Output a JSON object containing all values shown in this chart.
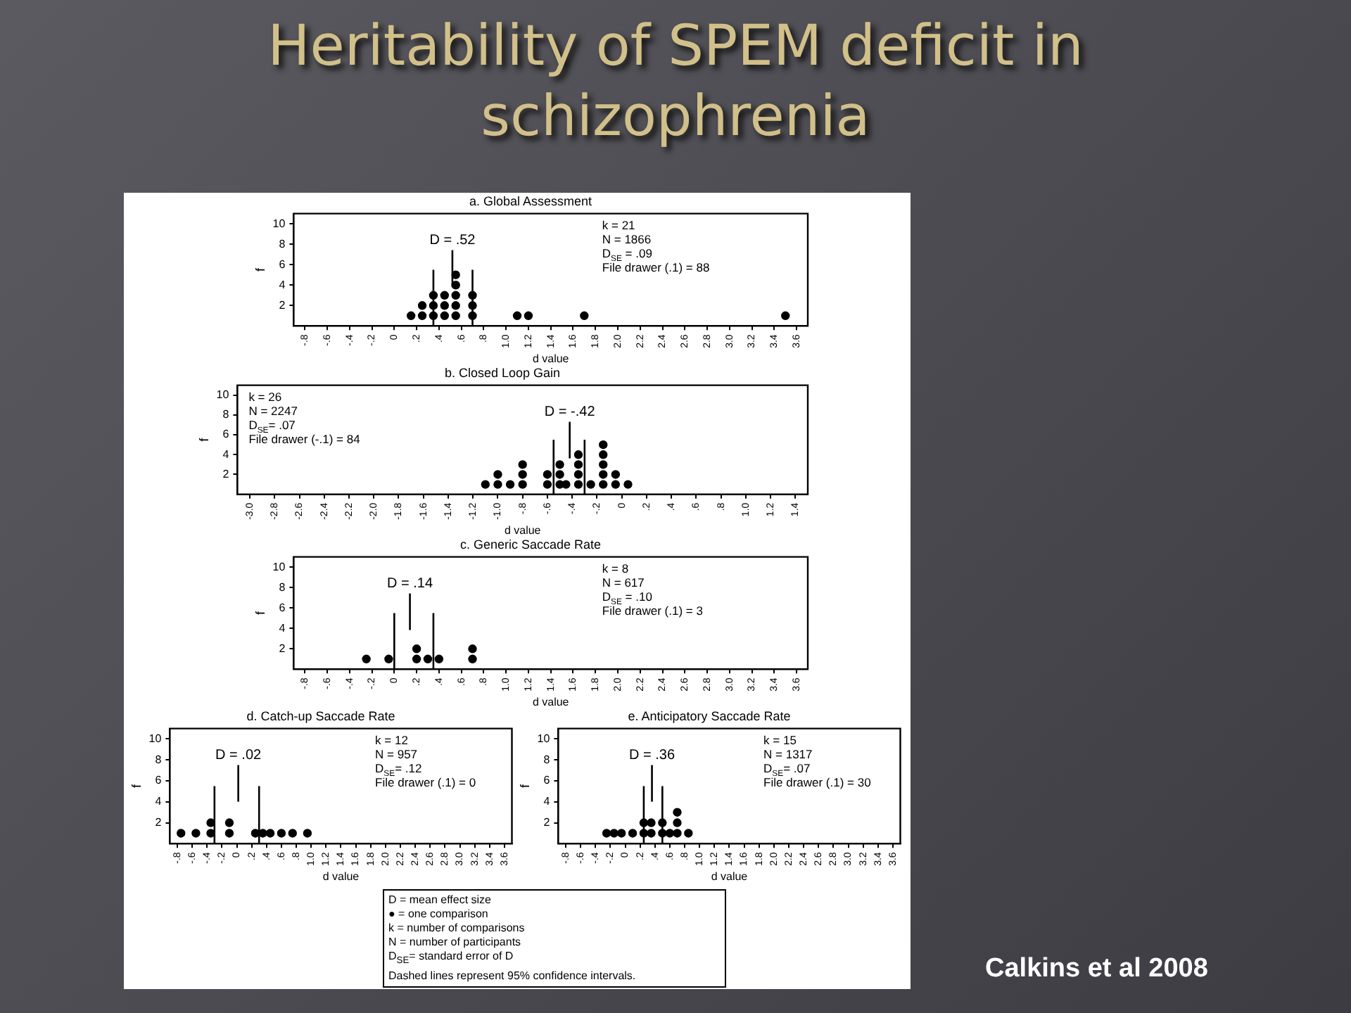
{
  "chart_data": [
    {
      "type": "other",
      "title": "Heritability of SPEM deficit in schizophrenia",
      "annotations": [
        "D = mean effect size",
        "● = one comparison",
        "k = number of comparisons",
        "N = number of participants",
        "D$_{SE}$= standard error of D",
        "Dashed lines represent 95% confidence intervals.",
        "Calkins et al 2008"
      ]
    },
    {
      "type": "scatter",
      "title": "a. Global Assessment",
      "xlabel": "d value",
      "ylabel": "f",
      "marker": "circle",
      "grid": false,
      "x": [
        0.15,
        0.25,
        0.25,
        0.35,
        0.35,
        0.35,
        0.45,
        0.45,
        0.45,
        0.55,
        0.55,
        0.55,
        0.55,
        0.55,
        0.7,
        0.7,
        0.7,
        1.1,
        1.2,
        1.7,
        3.5
      ],
      "series": [
        {
          "color": "#000000",
          "values": [
            1,
            1,
            2,
            1,
            2,
            3,
            1,
            2,
            3,
            1,
            2,
            3,
            4,
            5,
            1,
            2,
            3,
            1,
            1,
            1,
            1
          ]
        }
      ],
      "xlim": [
        -0.9,
        3.7
      ],
      "xticks": [
        {
          "value": -0.8,
          "label": "-.8"
        },
        {
          "value": -0.6,
          "label": "-.6"
        },
        {
          "value": -0.4,
          "label": "-.4"
        },
        {
          "value": -0.2,
          "label": "-.2"
        },
        0,
        {
          "value": 0.2,
          "label": ".2"
        },
        {
          "value": 0.4,
          "label": ".4"
        },
        {
          "value": 0.6,
          "label": ".6"
        },
        {
          "value": 0.8,
          "label": ".8"
        },
        {
          "value": 1,
          "label": "1.0"
        },
        1.2,
        1.4,
        1.6,
        1.8,
        {
          "value": 2,
          "label": "2.0"
        },
        2.2,
        2.4,
        2.6,
        2.8,
        {
          "value": 3,
          "label": "3.0"
        },
        3.2,
        3.4,
        3.6
      ],
      "ylim": [
        0,
        11
      ],
      "yticks": [
        2,
        4,
        6,
        8,
        10
      ],
      "ref_lines": [
        {
          "axis": "x",
          "value": 0.35
        },
        {
          "axis": "x",
          "value": 0.7
        },
        {
          "axis": "x",
          "value": 0.52,
          "label": "D = .52"
        }
      ],
      "annotations": [
        "k = 21",
        "N = 1866",
        "D$_{SE}$ = .09",
        "File drawer (.1) = 88"
      ]
    },
    {
      "type": "scatter",
      "title": "b. Closed Loop Gain",
      "xlabel": "d value",
      "ylabel": "f",
      "marker": "circle",
      "grid": false,
      "x": [
        -1.1,
        -1.0,
        -1.0,
        -0.9,
        -0.8,
        -0.8,
        -0.8,
        -0.6,
        -0.6,
        -0.5,
        -0.5,
        -0.5,
        -0.45,
        -0.35,
        -0.35,
        -0.35,
        -0.35,
        -0.25,
        -0.15,
        -0.15,
        -0.15,
        -0.15,
        -0.15,
        -0.05,
        -0.05,
        0.05
      ],
      "series": [
        {
          "color": "#000000",
          "values": [
            1,
            1,
            2,
            1,
            1,
            2,
            3,
            1,
            2,
            1,
            2,
            3,
            1,
            1,
            2,
            3,
            4,
            1,
            1,
            2,
            3,
            4,
            5,
            1,
            2,
            1
          ]
        }
      ],
      "xlim": [
        -3.1,
        1.5
      ],
      "xticks": [
        {
          "value": -3,
          "label": "-3.0"
        },
        -2.8,
        -2.6,
        -2.4,
        -2.2,
        {
          "value": -2,
          "label": "-2.0"
        },
        -1.8,
        -1.6,
        -1.4,
        -1.2,
        {
          "value": -1,
          "label": "-1.0"
        },
        {
          "value": -0.8,
          "label": "-.8"
        },
        {
          "value": -0.6,
          "label": "-.6"
        },
        {
          "value": -0.4,
          "label": "-.4"
        },
        {
          "value": -0.2,
          "label": "-.2"
        },
        0,
        {
          "value": 0.2,
          "label": ".2"
        },
        {
          "value": 0.4,
          "label": ".4"
        },
        {
          "value": 0.6,
          "label": ".6"
        },
        {
          "value": 0.8,
          "label": ".8"
        },
        {
          "value": 1,
          "label": "1.0"
        },
        1.2,
        1.4
      ],
      "ylim": [
        0,
        11
      ],
      "yticks": [
        2,
        4,
        6,
        8,
        10
      ],
      "ref_lines": [
        {
          "axis": "x",
          "value": -0.55
        },
        {
          "axis": "x",
          "value": -0.3
        },
        {
          "axis": "x",
          "value": -0.42,
          "label": "D = -.42"
        }
      ],
      "annotations": [
        "k = 26",
        "N = 2247",
        "D$_{SE}$= .07",
        "File drawer (-.1) = 84"
      ]
    },
    {
      "type": "scatter",
      "title": "c. Generic Saccade Rate",
      "xlabel": "d value",
      "ylabel": "f",
      "marker": "circle",
      "grid": false,
      "x": [
        -0.25,
        -0.05,
        0.2,
        0.2,
        0.3,
        0.4,
        0.7,
        0.7
      ],
      "series": [
        {
          "color": "#000000",
          "values": [
            1,
            1,
            1,
            2,
            1,
            1,
            1,
            2
          ]
        }
      ],
      "xlim": [
        -0.9,
        3.7
      ],
      "xticks": [
        {
          "value": -0.8,
          "label": "-.8"
        },
        {
          "value": -0.6,
          "label": "-.6"
        },
        {
          "value": -0.4,
          "label": "-.4"
        },
        {
          "value": -0.2,
          "label": "-.2"
        },
        0,
        {
          "value": 0.2,
          "label": ".2"
        },
        {
          "value": 0.4,
          "label": ".4"
        },
        {
          "value": 0.6,
          "label": ".6"
        },
        {
          "value": 0.8,
          "label": ".8"
        },
        {
          "value": 1,
          "label": "1.0"
        },
        1.2,
        1.4,
        1.6,
        1.8,
        {
          "value": 2,
          "label": "2.0"
        },
        2.2,
        2.4,
        2.6,
        2.8,
        {
          "value": 3,
          "label": "3.0"
        },
        3.2,
        3.4,
        3.6
      ],
      "ylim": [
        0,
        11
      ],
      "yticks": [
        2,
        4,
        6,
        8,
        10
      ],
      "ref_lines": [
        {
          "axis": "x",
          "value": 0
        },
        {
          "axis": "x",
          "value": 0.35
        },
        {
          "axis": "x",
          "value": 0.14,
          "label": "D = .14"
        }
      ],
      "annotations": [
        "k = 8",
        "N = 617",
        "D$_{SE}$ = .10",
        "File drawer (.1) = 3"
      ]
    },
    {
      "type": "scatter",
      "title": "d. Catch-up Saccade Rate",
      "xlabel": "d value",
      "ylabel": "f",
      "marker": "circle",
      "grid": false,
      "x": [
        -0.75,
        -0.55,
        -0.35,
        -0.35,
        -0.1,
        -0.1,
        0.25,
        0.35,
        0.45,
        0.6,
        0.75,
        0.95
      ],
      "series": [
        {
          "color": "#000000",
          "values": [
            1,
            1,
            1,
            2,
            1,
            2,
            1,
            1,
            1,
            1,
            1,
            1
          ]
        }
      ],
      "xlim": [
        -0.9,
        3.7
      ],
      "xticks": [
        {
          "value": -0.8,
          "label": "-.8"
        },
        {
          "value": -0.6,
          "label": "-.6"
        },
        {
          "value": -0.4,
          "label": "-.4"
        },
        {
          "value": -0.2,
          "label": "-.2"
        },
        0,
        {
          "value": 0.2,
          "label": ".2"
        },
        {
          "value": 0.4,
          "label": ".4"
        },
        {
          "value": 0.6,
          "label": ".6"
        },
        {
          "value": 0.8,
          "label": ".8"
        },
        {
          "value": 1,
          "label": "1.0"
        },
        1.2,
        1.4,
        1.6,
        1.8,
        {
          "value": 2,
          "label": "2.0"
        },
        2.2,
        2.4,
        2.6,
        2.8,
        {
          "value": 3,
          "label": "3.0"
        },
        3.2,
        3.4,
        3.6
      ],
      "ylim": [
        0,
        11
      ],
      "yticks": [
        2,
        4,
        6,
        8,
        10
      ],
      "ref_lines": [
        {
          "axis": "x",
          "value": -0.3
        },
        {
          "axis": "x",
          "value": 0.3
        },
        {
          "axis": "x",
          "value": 0.02,
          "label": "D = .02"
        }
      ],
      "annotations": [
        "k = 12",
        "N = 957",
        "D$_{SE}$= .12",
        "File drawer (.1) = 0"
      ]
    },
    {
      "type": "scatter",
      "title": "e. Anticipatory Saccade Rate",
      "xlabel": "d value",
      "ylabel": "f",
      "marker": "circle",
      "grid": false,
      "x": [
        -0.25,
        -0.15,
        -0.05,
        0.1,
        0.25,
        0.25,
        0.35,
        0.35,
        0.5,
        0.5,
        0.6,
        0.7,
        0.7,
        0.7,
        0.85
      ],
      "series": [
        {
          "color": "#000000",
          "values": [
            1,
            1,
            1,
            1,
            1,
            2,
            1,
            2,
            1,
            2,
            1,
            1,
            2,
            3,
            1
          ]
        }
      ],
      "xlim": [
        -0.9,
        3.7
      ],
      "xticks": [
        {
          "value": -0.8,
          "label": "-.8"
        },
        {
          "value": -0.6,
          "label": "-.6"
        },
        {
          "value": -0.4,
          "label": "-.4"
        },
        {
          "value": -0.2,
          "label": "-.2"
        },
        0,
        {
          "value": 0.2,
          "label": ".2"
        },
        {
          "value": 0.4,
          "label": ".4"
        },
        {
          "value": 0.6,
          "label": ".6"
        },
        {
          "value": 0.8,
          "label": ".8"
        },
        {
          "value": 1,
          "label": "1.0"
        },
        1.2,
        1.4,
        1.6,
        1.8,
        {
          "value": 2,
          "label": "2.0"
        },
        2.2,
        2.4,
        2.6,
        2.8,
        {
          "value": 3,
          "label": "3.0"
        },
        3.2,
        3.4,
        3.6
      ],
      "ylim": [
        0,
        11
      ],
      "yticks": [
        2,
        4,
        6,
        8,
        10
      ],
      "ref_lines": [
        {
          "axis": "x",
          "value": 0.25
        },
        {
          "axis": "x",
          "value": 0.5
        },
        {
          "axis": "x",
          "value": 0.36,
          "label": "D = .36"
        }
      ],
      "annotations": [
        "k = 15",
        "N = 1317",
        "D$_{SE}$= .07",
        "File drawer (.1) = 30"
      ]
    }
  ]
}
